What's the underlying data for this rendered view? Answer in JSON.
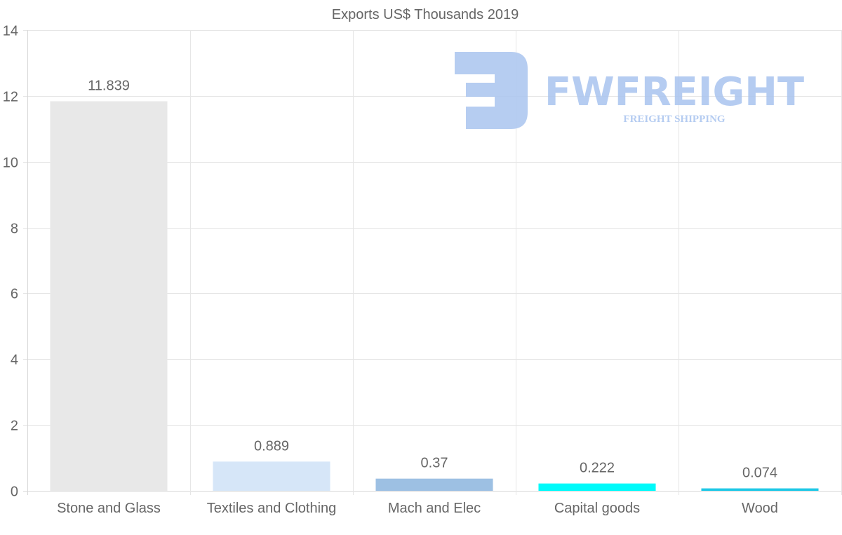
{
  "chart_data": {
    "type": "bar",
    "title": "Exports US$ Thousands 2019",
    "categories": [
      "Stone and Glass",
      "Textiles and Clothing",
      "Mach and Elec",
      "Capital goods",
      "Wood"
    ],
    "values": [
      11.839,
      0.889,
      0.37,
      0.222,
      0.074
    ],
    "value_labels": [
      "11.839",
      "0.889",
      "0.37",
      "0.222",
      "0.074"
    ],
    "bar_colors": [
      "#e8e8e8",
      "#d6e6f8",
      "#9dc0e3",
      "#00fafa",
      "#1ec8e6"
    ],
    "xlabel": "",
    "ylabel": "",
    "ylim": [
      0,
      14
    ],
    "yticks": [
      0,
      2,
      4,
      6,
      8,
      10,
      12,
      14
    ],
    "grid": true,
    "legend": "none"
  },
  "watermark": {
    "brand": "FWFREIGHT",
    "tagline": "FREIGHT SHIPPING",
    "color": "#a9c4ef"
  }
}
